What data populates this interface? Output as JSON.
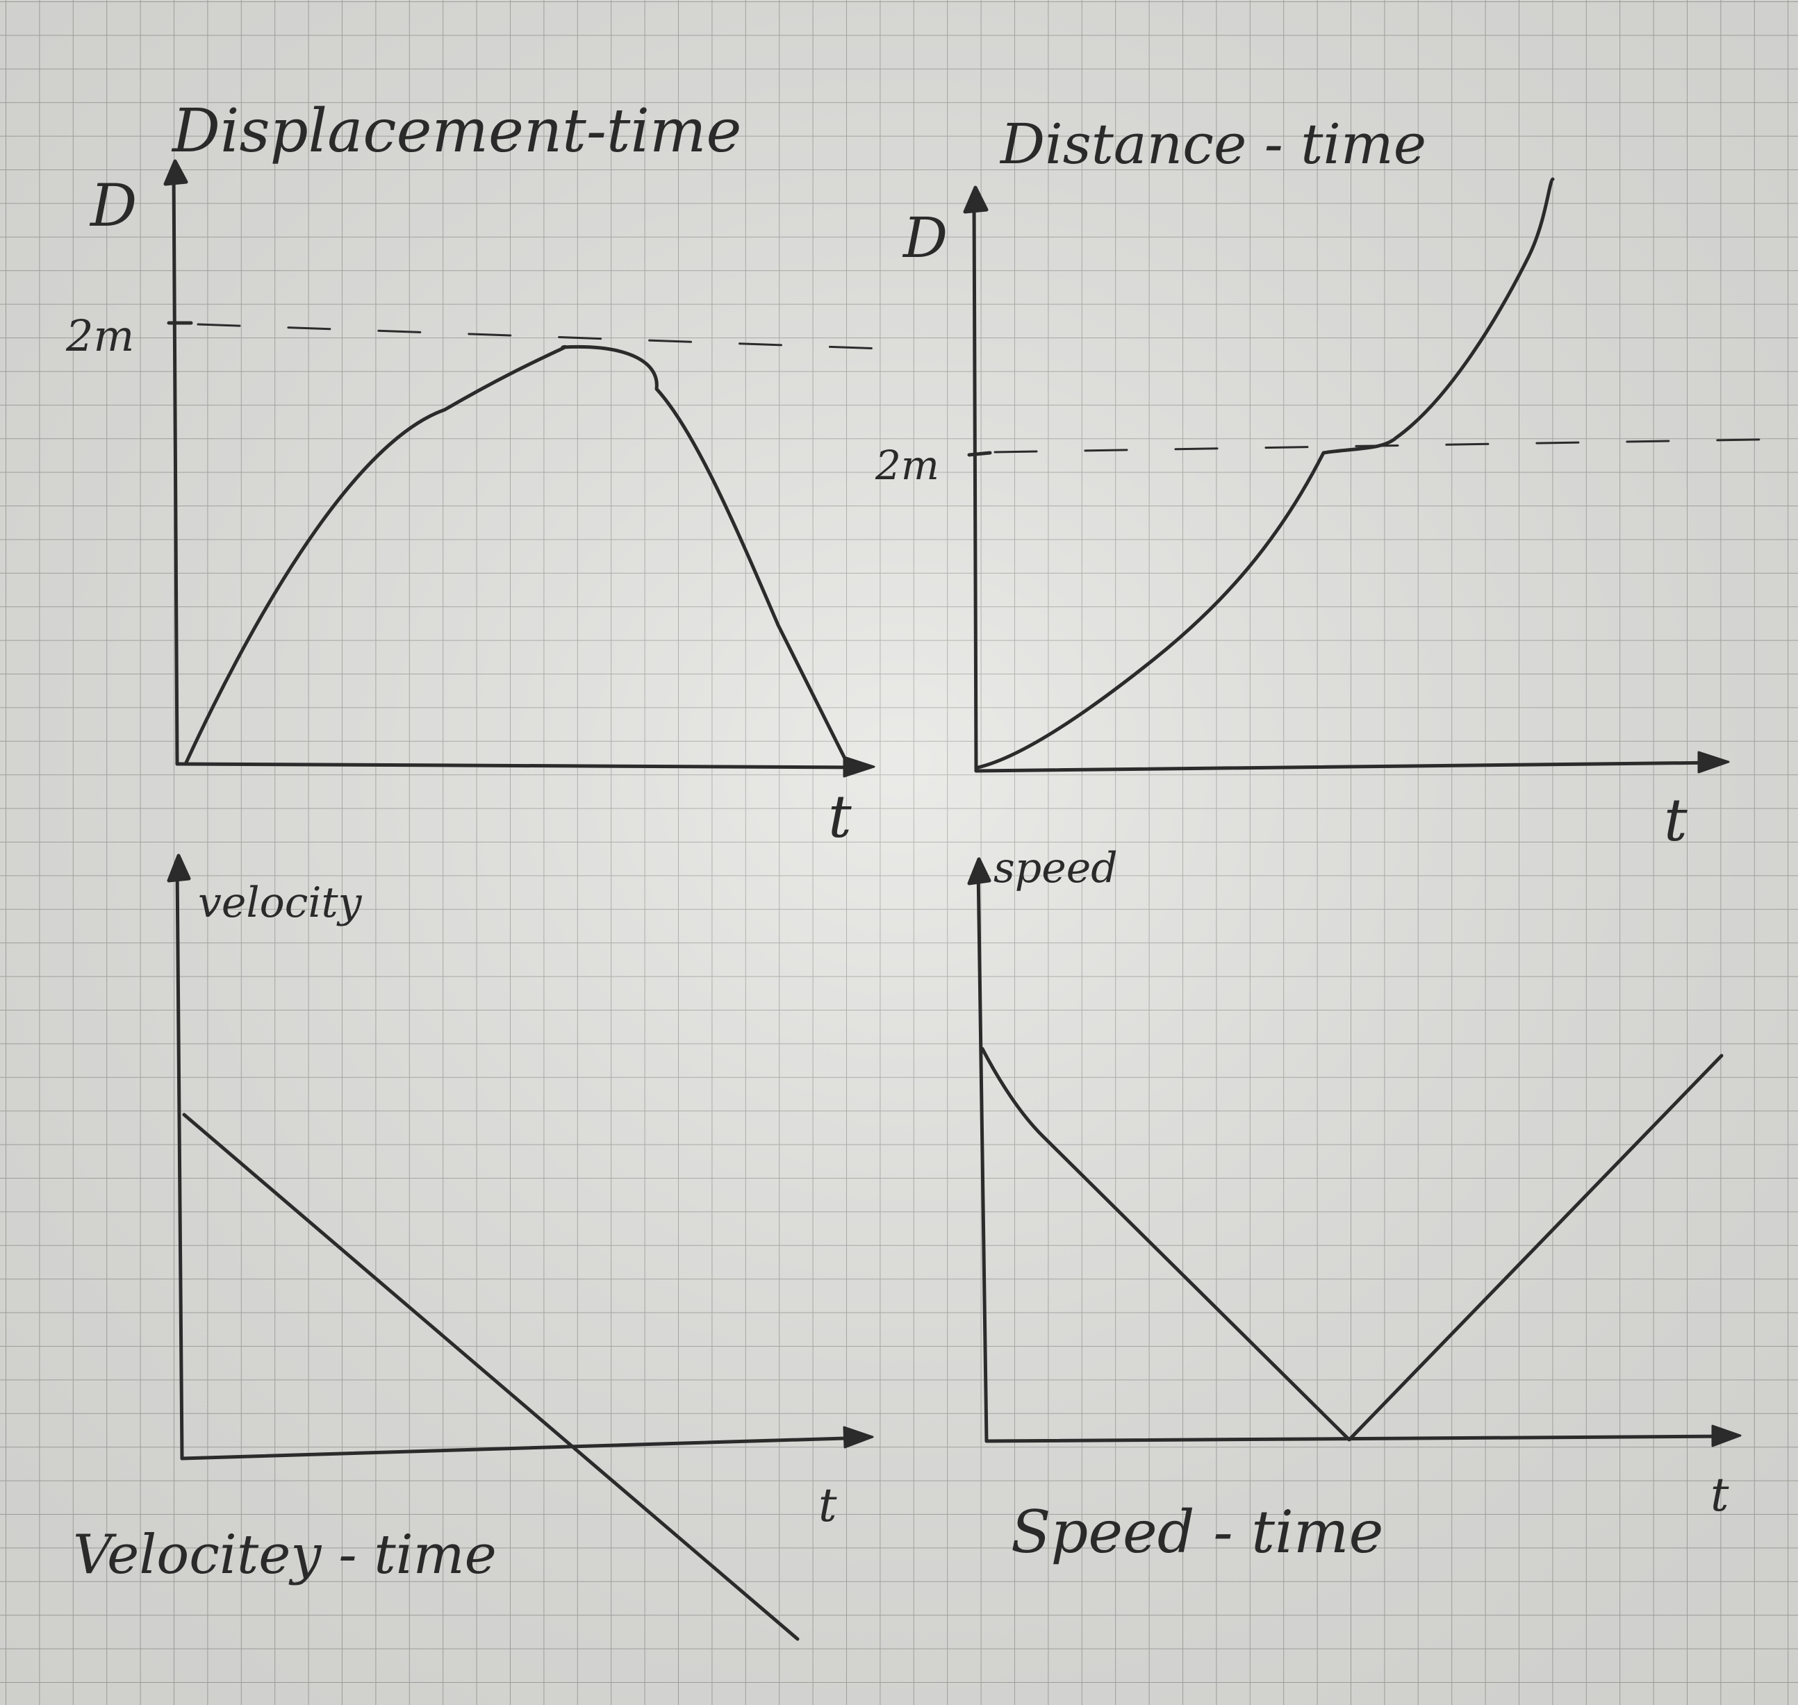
{
  "paper": {
    "background": "#e6e6e3",
    "grid_color": "#a9a9a6",
    "ink_color": "#2b2b2b"
  },
  "graphs": {
    "displacement_time": {
      "title": "Displacement-time",
      "y_label": "D",
      "x_label": "t",
      "reference_label": "2m",
      "curve": "rises from 0 to a rounded peak just below the 2m line, then falls back to 0"
    },
    "distance_time": {
      "title": "Distance - time",
      "y_label": "D",
      "x_label": "t",
      "reference_label": "2m",
      "curve": "rises from 0, levels off briefly at 2m, then rises steeply"
    },
    "velocity_time": {
      "title": "Velocitey - time",
      "y_label": "velocity",
      "x_label": "t",
      "curve": "straight line decreasing from a positive value, crossing zero and becoming negative"
    },
    "speed_time": {
      "title": "Speed - time",
      "y_label": "speed",
      "x_label": "t",
      "curve": "decreases linearly to zero, then increases linearly"
    }
  }
}
